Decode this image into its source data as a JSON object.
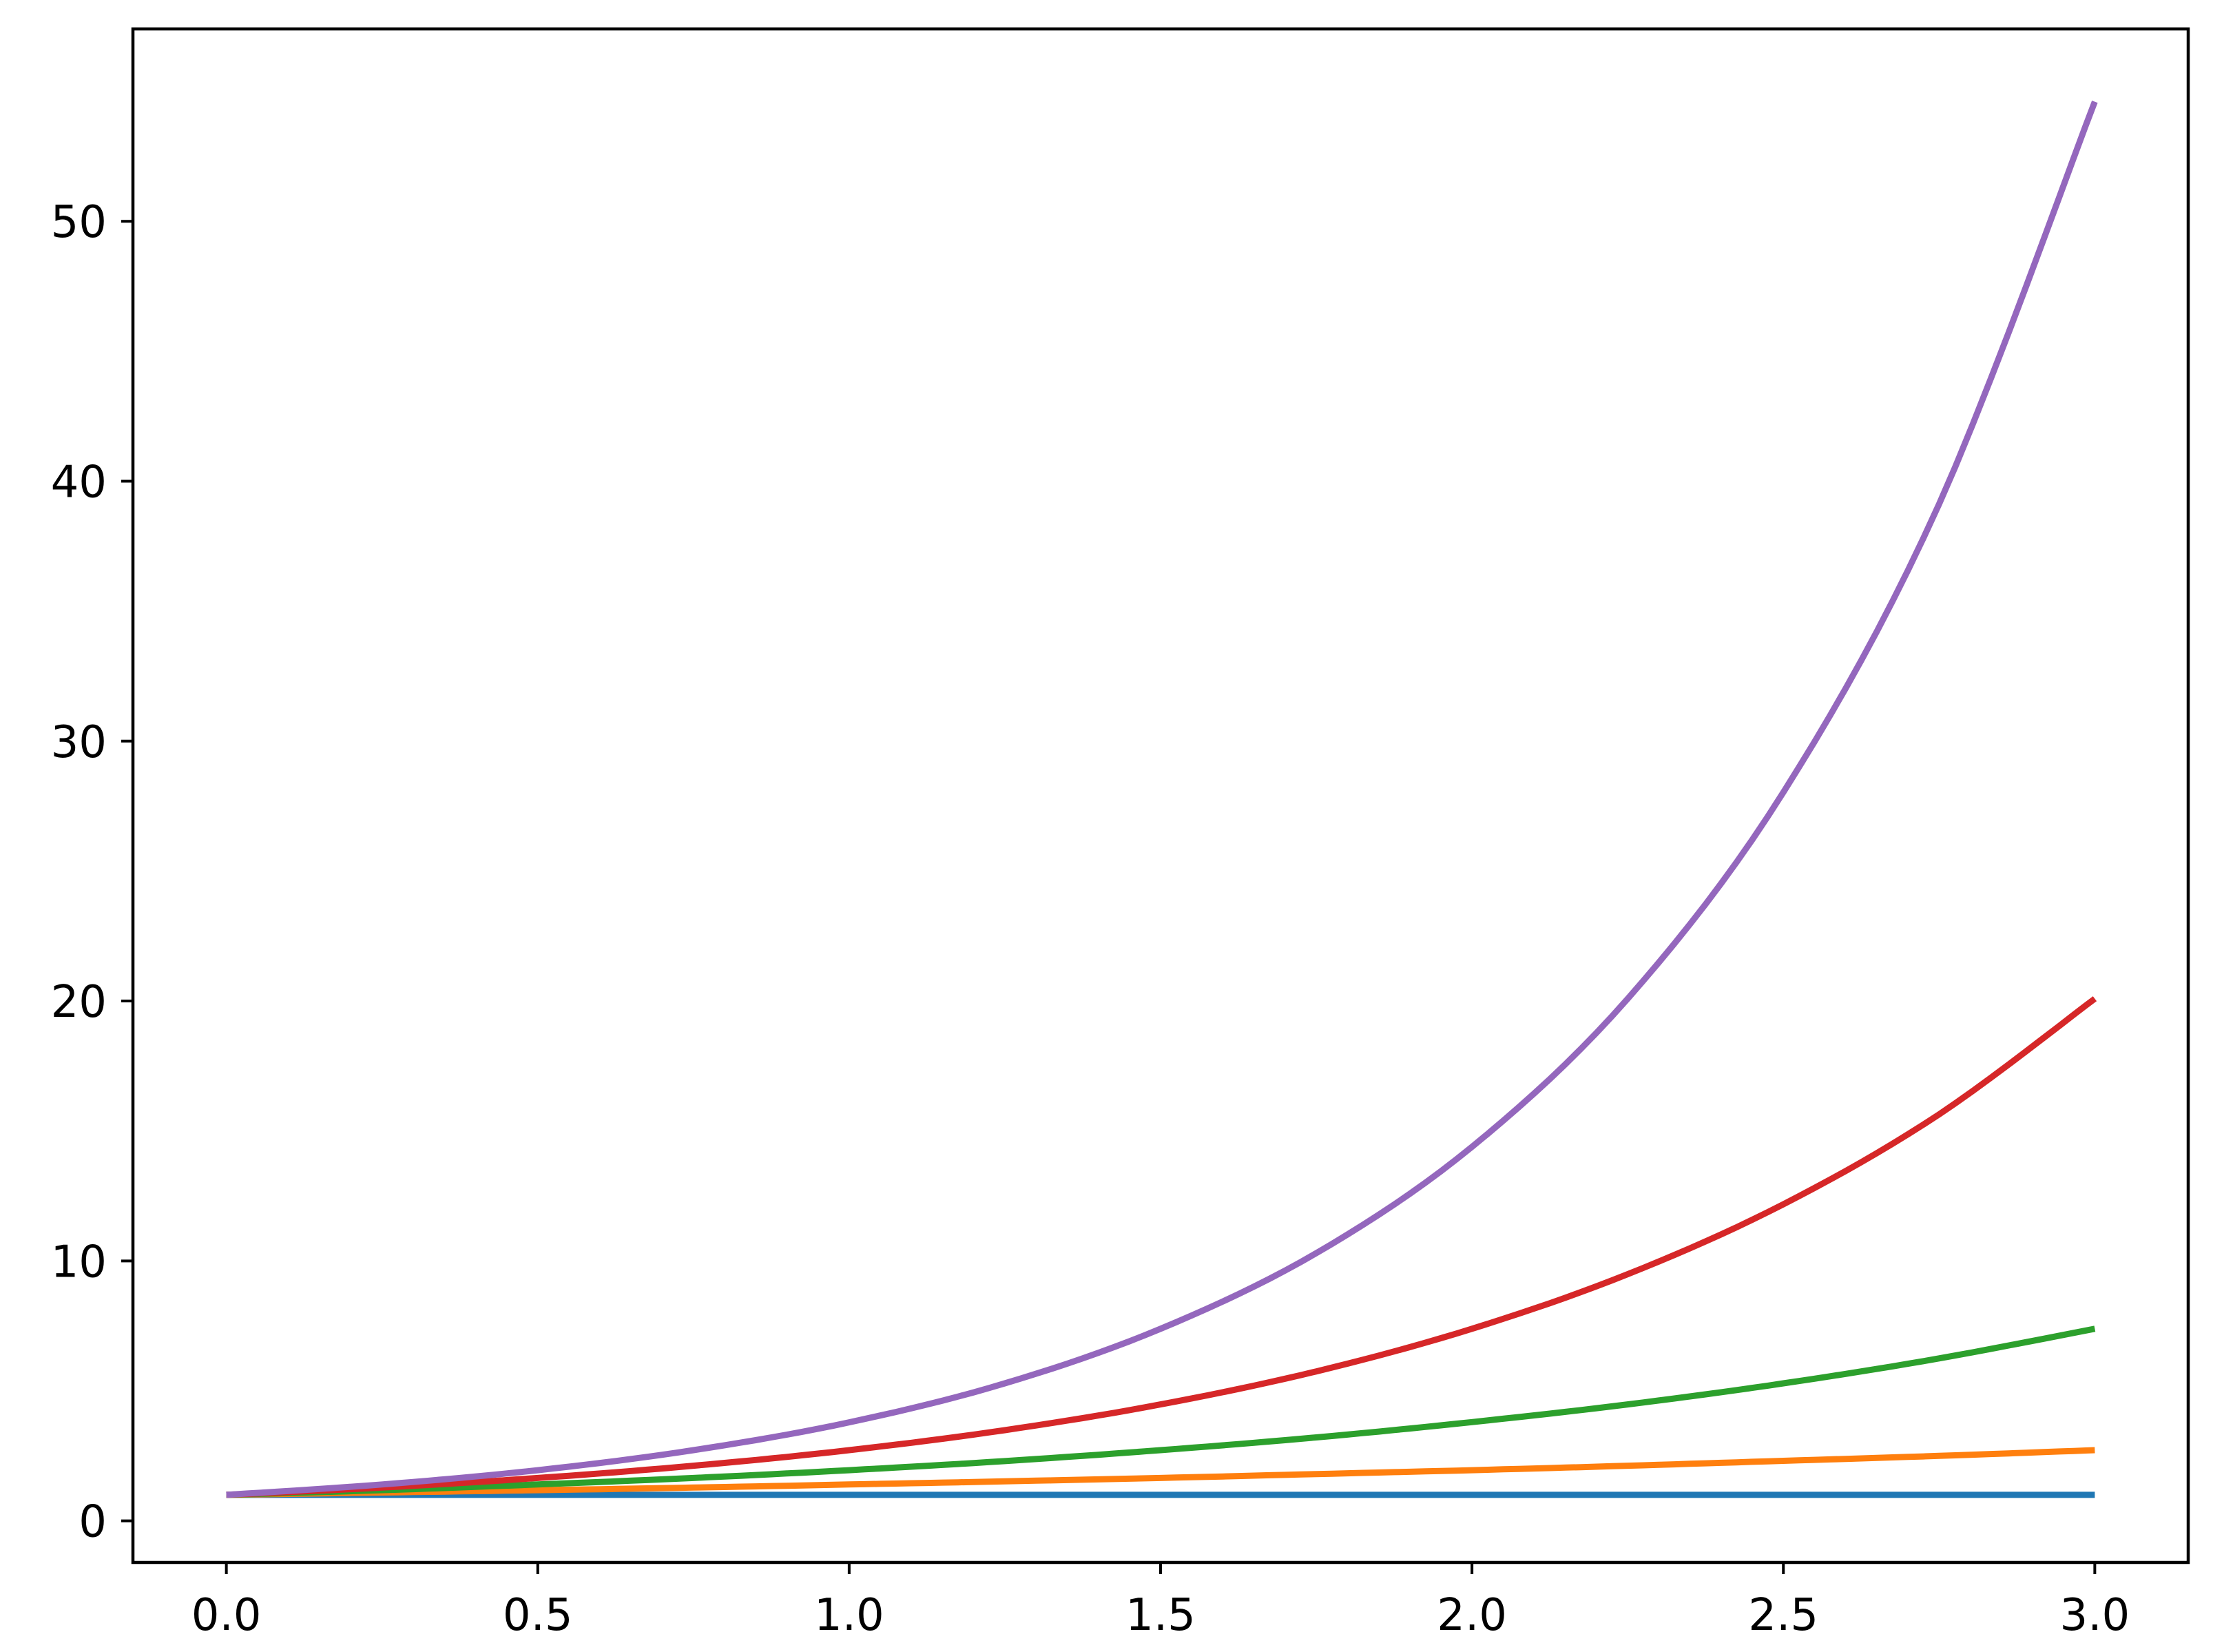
{
  "chart_data": {
    "type": "line",
    "title": "",
    "xlabel": "",
    "ylabel": "",
    "xlim": [
      -0.15,
      3.15
    ],
    "ylim": [
      -1.6,
      57.4
    ],
    "x_ticks": [
      0.0,
      0.5,
      1.0,
      1.5,
      2.0,
      2.5,
      3.0
    ],
    "x_tick_labels": [
      "0.0",
      "0.5",
      "1.0",
      "1.5",
      "2.0",
      "2.5",
      "3.0"
    ],
    "y_ticks": [
      0,
      10,
      20,
      30,
      40,
      50
    ],
    "y_tick_labels": [
      "0",
      "10",
      "20",
      "30",
      "40",
      "50"
    ],
    "grid": false,
    "legend": "none",
    "x": [
      0.0,
      0.25,
      0.5,
      0.75,
      1.0,
      1.25,
      1.5,
      1.75,
      2.0,
      2.25,
      2.5,
      2.75,
      3.0
    ],
    "series": [
      {
        "color": "#1f77b4",
        "values": [
          1.0,
          1.0,
          1.0,
          1.0,
          1.0,
          1.0,
          1.0,
          1.0,
          1.0,
          1.0,
          1.0,
          1.0,
          1.0
        ]
      },
      {
        "color": "#ff7f0e",
        "values": [
          1.0,
          1.09,
          1.18,
          1.28,
          1.4,
          1.52,
          1.65,
          1.8,
          1.95,
          2.12,
          2.31,
          2.5,
          2.72
        ]
      },
      {
        "color": "#2ca02c",
        "values": [
          1.0,
          1.18,
          1.4,
          1.65,
          1.95,
          2.3,
          2.72,
          3.21,
          3.8,
          4.48,
          5.29,
          6.25,
          7.39
        ]
      },
      {
        "color": "#d62728",
        "values": [
          1.0,
          1.28,
          1.65,
          2.12,
          2.72,
          3.49,
          4.48,
          5.75,
          7.39,
          9.49,
          12.18,
          15.64,
          20.09
        ]
      },
      {
        "color": "#9467bd",
        "values": [
          1.0,
          1.4,
          1.95,
          2.72,
          3.79,
          5.29,
          7.39,
          10.3,
          14.39,
          20.09,
          28.03,
          39.12,
          54.6
        ]
      }
    ]
  }
}
